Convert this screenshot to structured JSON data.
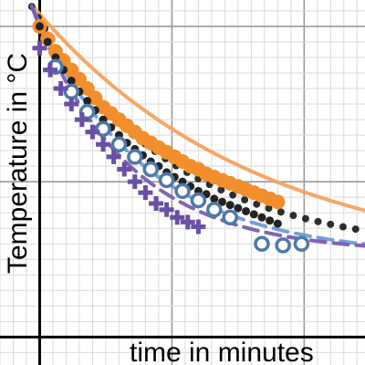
{
  "chart_data": {
    "type": "scatter",
    "title": "",
    "xlabel": "time in minutes",
    "ylabel": "Temperature in °C",
    "xlim": [
      -1.5,
      12.3
    ],
    "ylim": [
      -0.9,
      10.85
    ],
    "grid": true,
    "legend": "none",
    "series": [
      {
        "marker": "dot",
        "color": "#f28e2b",
        "points": [
          [
            0,
            10
          ],
          [
            0.3,
            9.6
          ],
          [
            0.6,
            9.2
          ],
          [
            0.9,
            8.9
          ],
          [
            1.2,
            8.6
          ],
          [
            1.5,
            8.3
          ],
          [
            1.8,
            8.0
          ],
          [
            2.1,
            7.7
          ],
          [
            2.4,
            7.4
          ],
          [
            2.7,
            7.2
          ],
          [
            3,
            7.0
          ],
          [
            3.3,
            6.8
          ],
          [
            3.6,
            6.6
          ],
          [
            3.9,
            6.4
          ],
          [
            4.2,
            6.25
          ],
          [
            4.5,
            6.1
          ],
          [
            4.8,
            5.95
          ],
          [
            5.1,
            5.8
          ],
          [
            5.4,
            5.65
          ],
          [
            5.7,
            5.5
          ],
          [
            6,
            5.4
          ],
          [
            6.3,
            5.25
          ],
          [
            6.6,
            5.15
          ],
          [
            6.9,
            5.05
          ],
          [
            7.2,
            4.95
          ],
          [
            7.5,
            4.85
          ],
          [
            7.8,
            4.75
          ],
          [
            8.1,
            4.65
          ],
          [
            8.4,
            4.55
          ],
          [
            8.7,
            4.45
          ],
          [
            9,
            4.35
          ]
        ]
      },
      {
        "marker": "dot",
        "color": "#222222",
        "points": [
          [
            0,
            10
          ],
          [
            0.3,
            9.5
          ],
          [
            0.6,
            9.0
          ],
          [
            0.9,
            8.6
          ],
          [
            1.2,
            8.25
          ],
          [
            1.5,
            7.9
          ],
          [
            1.8,
            7.6
          ],
          [
            2.1,
            7.3
          ],
          [
            2.4,
            7.0
          ],
          [
            2.7,
            6.75
          ],
          [
            3,
            6.5
          ],
          [
            3.3,
            6.25
          ],
          [
            3.6,
            6.05
          ],
          [
            3.9,
            5.85
          ],
          [
            4.2,
            5.65
          ],
          [
            4.5,
            5.5
          ],
          [
            4.8,
            5.3
          ],
          [
            5.1,
            5.15
          ],
          [
            5.4,
            5.0
          ],
          [
            5.7,
            4.85
          ],
          [
            6,
            4.7
          ],
          [
            6.3,
            4.6
          ],
          [
            6.6,
            4.45
          ],
          [
            6.9,
            4.35
          ],
          [
            7.2,
            4.25
          ],
          [
            7.5,
            4.15
          ],
          [
            7.8,
            4.05
          ],
          [
            8.1,
            3.95
          ],
          [
            8.4,
            3.85
          ],
          [
            8.7,
            3.75
          ],
          [
            9,
            3.65
          ]
        ]
      },
      {
        "marker": "circle",
        "color": "#4e79a7",
        "points": [
          [
            0.6,
            8.7
          ],
          [
            1.2,
            7.9
          ],
          [
            1.8,
            7.25
          ],
          [
            2.4,
            6.7
          ],
          [
            3,
            6.2
          ],
          [
            3.6,
            5.8
          ],
          [
            4.2,
            5.4
          ],
          [
            4.8,
            5.05
          ],
          [
            5.4,
            4.7
          ],
          [
            6,
            4.4
          ],
          [
            6.6,
            4.1
          ],
          [
            7.2,
            3.85
          ],
          [
            8.4,
            3.0
          ],
          [
            9.2,
            2.95
          ],
          [
            9.9,
            3.0
          ]
        ]
      },
      {
        "marker": "cross",
        "color": "#6a4fa6",
        "points": [
          [
            0,
            9.3
          ],
          [
            0.4,
            8.6
          ],
          [
            0.8,
            8.0
          ],
          [
            1.2,
            7.5
          ],
          [
            1.6,
            7.0
          ],
          [
            2.0,
            6.6
          ],
          [
            2.4,
            6.2
          ],
          [
            2.8,
            5.8
          ],
          [
            3.2,
            5.4
          ],
          [
            3.6,
            5.0
          ],
          [
            4.0,
            4.65
          ],
          [
            4.4,
            4.3
          ],
          [
            4.8,
            4.1
          ],
          [
            5.2,
            3.85
          ],
          [
            5.6,
            3.7
          ],
          [
            6.0,
            3.55
          ]
        ]
      }
    ],
    "fit_curves": [
      {
        "style": "solid",
        "color": "#f7a15c",
        "T0": 10.4,
        "Tinf": 2.2,
        "k": 0.12,
        "x": [
          -0.3,
          12.3
        ]
      },
      {
        "style": "dotted",
        "color": "#222222",
        "T0": 10.2,
        "Tinf": 2.7,
        "k": 0.19,
        "x": [
          -0.3,
          12.3
        ]
      },
      {
        "style": "dashed",
        "color": "#6a9bd8",
        "T0": 10.1,
        "Tinf": 2.6,
        "k": 0.24,
        "x": [
          -0.3,
          12.3
        ]
      },
      {
        "style": "dashed",
        "color": "#7a5cb0",
        "T0": 10.0,
        "Tinf": 2.7,
        "k": 0.28,
        "x": [
          -0.3,
          12.3
        ]
      }
    ]
  }
}
